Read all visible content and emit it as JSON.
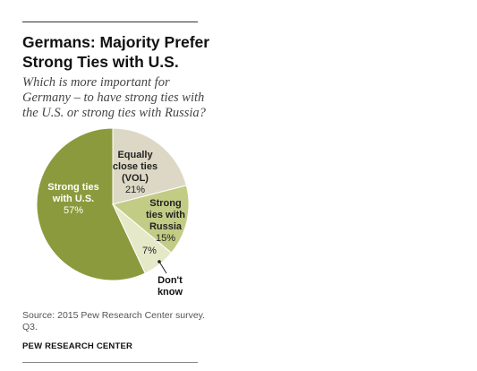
{
  "header": {
    "title_line1": "Germans: Majority Prefer",
    "title_line2": "Strong Ties with U.S.",
    "subtitle_line1": "Which is more important for",
    "subtitle_line2": "Germany – to have strong ties with",
    "subtitle_line3": "the U.S. or strong ties with Russia?"
  },
  "chart_data": {
    "type": "pie",
    "slices": [
      {
        "label_lines": [
          "Strong ties",
          "with U.S."
        ],
        "value": 57,
        "value_label": "57%",
        "color": "#8b9a3c",
        "label_color": "#ffffff"
      },
      {
        "label_lines": [
          "Equally",
          "close ties",
          "(VOL)"
        ],
        "value": 21,
        "value_label": "21%",
        "color": "#ddd8c5",
        "label_color": "#222222"
      },
      {
        "label_lines": [
          "Strong",
          "ties with",
          "Russia"
        ],
        "value": 15,
        "value_label": "15%",
        "color": "#c3cc85",
        "label_color": "#222222"
      },
      {
        "label_lines": [
          "Don't",
          "know"
        ],
        "value": 7,
        "value_label": "7%",
        "color": "#e6e9c8",
        "label_color": "#222222"
      }
    ]
  },
  "footer": {
    "source_line1": "Source: 2015 Pew Research Center survey.",
    "source_line2": "Q3.",
    "brand": "PEW RESEARCH CENTER"
  }
}
